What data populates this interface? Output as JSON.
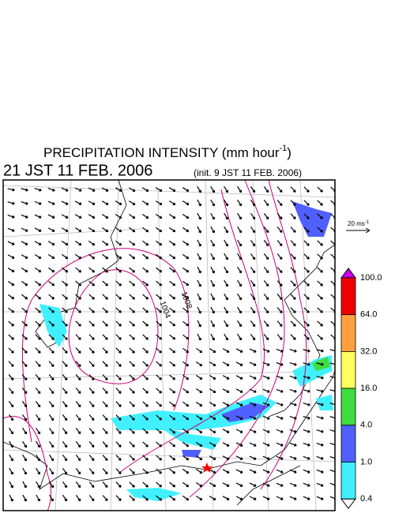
{
  "header": {
    "title": "PRECIPITATION INTENSITY (mm hour",
    "title_superscript": "-1",
    "title_end": ")",
    "valid_time": "21 JST 11 FEB. 2006",
    "init_time": "(init. 9 JST 11 FEB. 2006)"
  },
  "map": {
    "contour_labels": [
      "1008",
      "1004"
    ]
  },
  "reference_vector": {
    "label": "20 ms",
    "superscript": "-1"
  },
  "colorbar": {
    "labels": [
      "100.0",
      "64.0",
      "32.0",
      "16.0",
      "4.0",
      "1.0",
      "0.4"
    ],
    "segment_colors": [
      "#ee0000",
      "#ffa040",
      "#ffff60",
      "#40dd40",
      "#5060ff",
      "#40f0ff"
    ],
    "over_color": "#cc00ee",
    "under_color": "#ffffff"
  }
}
